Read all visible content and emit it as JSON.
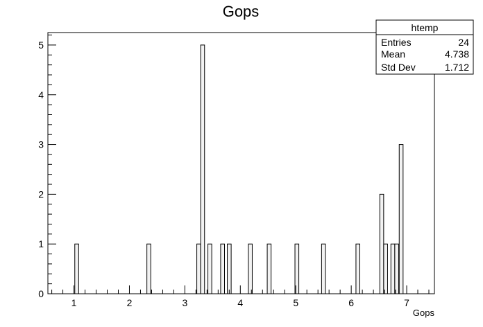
{
  "chart_data": {
    "type": "bar",
    "title": "Gops",
    "xlabel": "Gops",
    "ylabel": "",
    "xlim": [
      0.53,
      7.5
    ],
    "ylim": [
      0,
      5.25
    ],
    "x_ticks": [
      "1",
      "2",
      "3",
      "4",
      "5",
      "6",
      "7"
    ],
    "y_ticks": [
      "0",
      "1",
      "2",
      "3",
      "4",
      "5"
    ],
    "bins": [
      {
        "x": 1.05,
        "count": 1
      },
      {
        "x": 2.35,
        "count": 1
      },
      {
        "x": 3.25,
        "count": 1
      },
      {
        "x": 3.32,
        "count": 5
      },
      {
        "x": 3.45,
        "count": 1
      },
      {
        "x": 3.68,
        "count": 1
      },
      {
        "x": 3.8,
        "count": 1
      },
      {
        "x": 4.18,
        "count": 1
      },
      {
        "x": 4.52,
        "count": 1
      },
      {
        "x": 5.02,
        "count": 1
      },
      {
        "x": 5.5,
        "count": 1
      },
      {
        "x": 6.12,
        "count": 1
      },
      {
        "x": 6.55,
        "count": 2
      },
      {
        "x": 6.62,
        "count": 1
      },
      {
        "x": 6.75,
        "count": 1
      },
      {
        "x": 6.82,
        "count": 1
      },
      {
        "x": 6.9,
        "count": 3
      }
    ],
    "bin_width": 0.0697,
    "grid": false,
    "stats_box": {
      "title": "htemp",
      "rows": [
        {
          "label": "Entries",
          "value": "24"
        },
        {
          "label": "Mean",
          "value": "4.738"
        },
        {
          "label": "Std Dev",
          "value": "1.712"
        }
      ]
    }
  }
}
